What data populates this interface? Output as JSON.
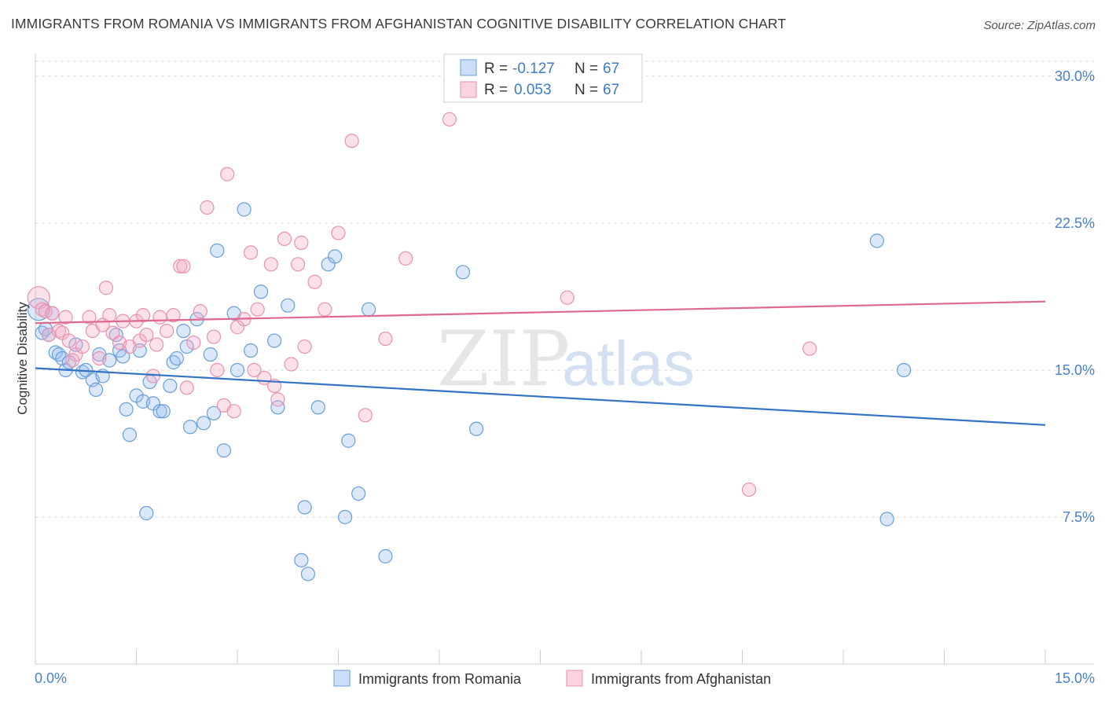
{
  "title": "IMMIGRANTS FROM ROMANIA VS IMMIGRANTS FROM AFGHANISTAN COGNITIVE DISABILITY CORRELATION CHART",
  "source": "Source: ZipAtlas.com",
  "watermark": {
    "zip": "ZIP",
    "atlas": "atlas"
  },
  "colors": {
    "romania_fill": "rgba(150,190,240,0.35)",
    "romania_stroke": "#6a9edb",
    "romania_line": "#3373c4",
    "afghanistan_fill": "rgba(245,170,195,0.35)",
    "afghanistan_stroke": "#e891b1",
    "afghanistan_line": "#e0678f",
    "axis_text": "#4a7fc8",
    "grid": "#dcdcdc"
  },
  "legend": {
    "rows": [
      {
        "r_label": "R =",
        "r_value": "-0.127",
        "n_label": "N =",
        "n_value": "67"
      },
      {
        "r_label": "R =",
        "r_value": "0.053",
        "n_label": "N =",
        "n_value": "67"
      }
    ]
  },
  "chart_data": {
    "type": "scatter",
    "title": "IMMIGRANTS FROM ROMANIA VS IMMIGRANTS FROM AFGHANISTAN COGNITIVE DISABILITY CORRELATION CHART",
    "xlabel": "",
    "ylabel": "Cognitive Disability",
    "xlim": [
      0,
      15
    ],
    "ylim": [
      0,
      31
    ],
    "x_ticks": [
      "0.0%",
      "15.0%"
    ],
    "y_ticks": [
      {
        "value": 7.5,
        "label": "7.5%"
      },
      {
        "value": 15.0,
        "label": "15.0%"
      },
      {
        "value": 22.5,
        "label": "22.5%"
      },
      {
        "value": 30.0,
        "label": "30.0%"
      }
    ],
    "grid": true,
    "legend_position": "top-center",
    "series": [
      {
        "name": "Immigrants from Romania",
        "trend": [
          [
            0,
            15.1
          ],
          [
            15,
            12.2
          ]
        ],
        "points": [
          [
            0.05,
            18.1
          ],
          [
            0.1,
            16.9
          ],
          [
            0.15,
            17.1
          ],
          [
            0.2,
            16.8
          ],
          [
            0.3,
            15.9
          ],
          [
            0.35,
            15.8
          ],
          [
            0.4,
            15.6
          ],
          [
            0.45,
            15.0
          ],
          [
            0.5,
            15.4
          ],
          [
            0.6,
            16.3
          ],
          [
            0.7,
            14.9
          ],
          [
            0.75,
            15.0
          ],
          [
            0.85,
            14.5
          ],
          [
            0.9,
            14.0
          ],
          [
            0.95,
            15.8
          ],
          [
            1.1,
            15.5
          ],
          [
            1.2,
            16.8
          ],
          [
            1.25,
            16.0
          ],
          [
            1.3,
            15.7
          ],
          [
            1.35,
            13.0
          ],
          [
            1.4,
            11.7
          ],
          [
            1.5,
            13.7
          ],
          [
            1.55,
            16.0
          ],
          [
            1.6,
            13.4
          ],
          [
            1.65,
            7.7
          ],
          [
            1.7,
            14.4
          ],
          [
            1.75,
            13.3
          ],
          [
            1.85,
            12.9
          ],
          [
            1.9,
            12.9
          ],
          [
            2.0,
            14.2
          ],
          [
            2.05,
            15.4
          ],
          [
            2.1,
            15.6
          ],
          [
            2.2,
            17.0
          ],
          [
            2.25,
            16.2
          ],
          [
            2.3,
            12.1
          ],
          [
            2.4,
            17.6
          ],
          [
            2.5,
            12.3
          ],
          [
            2.6,
            15.8
          ],
          [
            2.65,
            12.8
          ],
          [
            2.7,
            21.1
          ],
          [
            2.8,
            10.9
          ],
          [
            2.95,
            17.9
          ],
          [
            3.0,
            15.0
          ],
          [
            3.1,
            23.2
          ],
          [
            3.2,
            16.0
          ],
          [
            3.35,
            19.0
          ],
          [
            3.55,
            16.5
          ],
          [
            3.6,
            13.1
          ],
          [
            3.75,
            18.3
          ],
          [
            3.95,
            5.3
          ],
          [
            4.0,
            8.0
          ],
          [
            4.05,
            4.6
          ],
          [
            4.2,
            13.1
          ],
          [
            4.35,
            20.4
          ],
          [
            4.45,
            20.8
          ],
          [
            4.6,
            7.5
          ],
          [
            4.65,
            11.4
          ],
          [
            4.8,
            8.7
          ],
          [
            4.95,
            18.1
          ],
          [
            5.2,
            5.5
          ],
          [
            6.35,
            20.0
          ],
          [
            6.55,
            12.0
          ],
          [
            12.5,
            21.6
          ],
          [
            12.65,
            7.4
          ],
          [
            12.9,
            15.0
          ],
          [
            0.25,
            17.9
          ],
          [
            1.0,
            14.7
          ]
        ]
      },
      {
        "name": "Immigrants from Afghanistan",
        "trend": [
          [
            0,
            17.4
          ],
          [
            15,
            18.5
          ]
        ],
        "points": [
          [
            0.05,
            18.7
          ],
          [
            0.1,
            18.1
          ],
          [
            0.15,
            18.0
          ],
          [
            0.2,
            16.8
          ],
          [
            0.25,
            17.9
          ],
          [
            0.35,
            17.0
          ],
          [
            0.4,
            16.9
          ],
          [
            0.45,
            17.7
          ],
          [
            0.5,
            16.5
          ],
          [
            0.6,
            15.8
          ],
          [
            0.7,
            16.2
          ],
          [
            0.8,
            17.7
          ],
          [
            0.85,
            17.0
          ],
          [
            0.95,
            15.6
          ],
          [
            1.0,
            17.3
          ],
          [
            1.05,
            19.2
          ],
          [
            1.15,
            16.9
          ],
          [
            1.25,
            16.4
          ],
          [
            1.3,
            17.5
          ],
          [
            1.4,
            16.2
          ],
          [
            1.5,
            17.5
          ],
          [
            1.55,
            16.5
          ],
          [
            1.6,
            17.8
          ],
          [
            1.65,
            16.8
          ],
          [
            1.75,
            14.7
          ],
          [
            1.8,
            16.3
          ],
          [
            1.85,
            17.7
          ],
          [
            1.95,
            17.0
          ],
          [
            2.05,
            17.8
          ],
          [
            2.15,
            20.3
          ],
          [
            2.25,
            14.1
          ],
          [
            2.35,
            16.4
          ],
          [
            2.45,
            18.0
          ],
          [
            2.55,
            23.3
          ],
          [
            2.65,
            16.7
          ],
          [
            2.7,
            15.0
          ],
          [
            2.8,
            13.2
          ],
          [
            2.85,
            25.0
          ],
          [
            2.95,
            12.9
          ],
          [
            3.0,
            17.2
          ],
          [
            3.1,
            17.6
          ],
          [
            3.2,
            21.0
          ],
          [
            3.3,
            18.1
          ],
          [
            3.4,
            14.6
          ],
          [
            3.5,
            20.4
          ],
          [
            3.55,
            14.2
          ],
          [
            3.6,
            13.5
          ],
          [
            3.7,
            21.7
          ],
          [
            3.8,
            15.3
          ],
          [
            3.9,
            20.4
          ],
          [
            3.95,
            21.5
          ],
          [
            4.15,
            19.5
          ],
          [
            4.3,
            18.1
          ],
          [
            4.5,
            22.0
          ],
          [
            4.7,
            26.7
          ],
          [
            4.9,
            12.7
          ],
          [
            5.2,
            16.6
          ],
          [
            5.5,
            20.7
          ],
          [
            6.15,
            27.8
          ],
          [
            7.9,
            18.7
          ],
          [
            10.6,
            8.9
          ],
          [
            11.5,
            16.1
          ],
          [
            2.2,
            20.3
          ],
          [
            1.1,
            17.8
          ],
          [
            0.55,
            15.5
          ],
          [
            3.25,
            15.0
          ],
          [
            4.0,
            16.2
          ]
        ]
      }
    ]
  }
}
